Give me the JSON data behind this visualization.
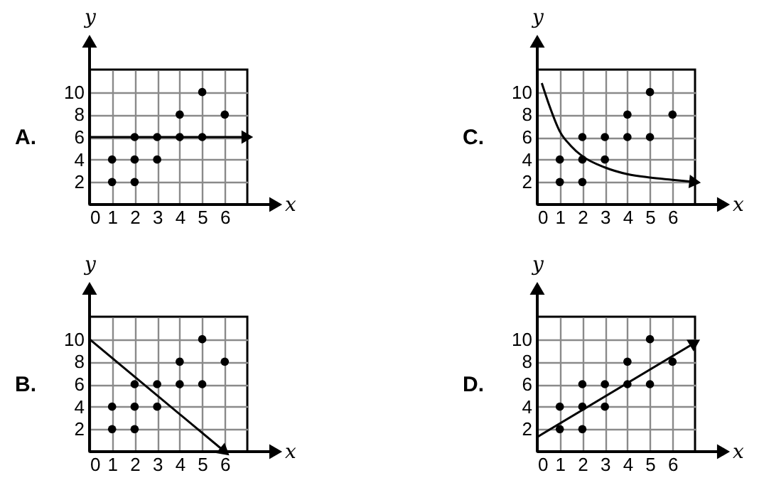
{
  "chart_data": [
    {
      "type": "scatter",
      "title": "A.",
      "xlabel": "x",
      "ylabel": "y",
      "xlim": [
        0,
        7
      ],
      "ylim": [
        0,
        12
      ],
      "xticks": [
        0,
        1,
        2,
        3,
        4,
        5,
        6
      ],
      "yticks": [
        2,
        4,
        6,
        8,
        10
      ],
      "grid": true,
      "series": [
        {
          "color": "#000000",
          "marker": "circle",
          "x": [
            1,
            1,
            2,
            2,
            2,
            3,
            3,
            4,
            4,
            5,
            5,
            6
          ],
          "values": [
            2,
            4,
            2,
            4,
            6,
            4,
            6,
            6,
            8,
            6,
            10,
            8
          ]
        },
        {
          "type": "line",
          "color": "#000000",
          "line_style": "solid",
          "x": [
            0,
            7
          ],
          "values": [
            6,
            6
          ]
        }
      ]
    },
    {
      "type": "scatter",
      "title": "C.",
      "xlabel": "x",
      "ylabel": "y",
      "xlim": [
        0,
        7
      ],
      "ylim": [
        0,
        12
      ],
      "xticks": [
        0,
        1,
        2,
        3,
        4,
        5,
        6
      ],
      "yticks": [
        2,
        4,
        6,
        8,
        10
      ],
      "grid": true,
      "series": [
        {
          "color": "#000000",
          "marker": "circle",
          "x": [
            1,
            1,
            2,
            2,
            2,
            3,
            3,
            4,
            4,
            5,
            5,
            6
          ],
          "values": [
            2,
            4,
            2,
            4,
            6,
            4,
            6,
            6,
            8,
            6,
            10,
            8
          ]
        },
        {
          "type": "line",
          "color": "#000000",
          "line_style": "solid",
          "x": [
            0.2,
            0.5,
            1,
            1.5,
            2,
            3,
            4,
            5,
            6,
            7
          ],
          "values": [
            10.8,
            9,
            6.5,
            5.2,
            4.3,
            3.3,
            2.7,
            2.4,
            2.2,
            2
          ]
        }
      ]
    },
    {
      "type": "scatter",
      "title": "B.",
      "xlabel": "x",
      "ylabel": "y",
      "xlim": [
        0,
        7
      ],
      "ylim": [
        0,
        12
      ],
      "xticks": [
        0,
        1,
        2,
        3,
        4,
        5,
        6
      ],
      "yticks": [
        2,
        4,
        6,
        8,
        10
      ],
      "grid": true,
      "series": [
        {
          "color": "#000000",
          "marker": "circle",
          "x": [
            1,
            1,
            2,
            2,
            2,
            3,
            3,
            4,
            4,
            5,
            5,
            6
          ],
          "values": [
            2,
            4,
            2,
            4,
            6,
            4,
            6,
            6,
            8,
            6,
            10,
            8
          ]
        },
        {
          "type": "line",
          "color": "#000000",
          "line_style": "solid",
          "x": [
            0,
            6
          ],
          "values": [
            10,
            0
          ]
        }
      ]
    },
    {
      "type": "scatter",
      "title": "D.",
      "xlabel": "x",
      "ylabel": "y",
      "xlim": [
        0,
        7
      ],
      "ylim": [
        0,
        12
      ],
      "xticks": [
        0,
        1,
        2,
        3,
        4,
        5,
        6
      ],
      "yticks": [
        2,
        4,
        6,
        8,
        10
      ],
      "grid": true,
      "series": [
        {
          "color": "#000000",
          "marker": "circle",
          "x": [
            1,
            1,
            2,
            2,
            2,
            3,
            3,
            4,
            4,
            5,
            5,
            6
          ],
          "values": [
            2,
            4,
            2,
            4,
            6,
            4,
            6,
            6,
            8,
            6,
            10,
            8
          ]
        },
        {
          "type": "line",
          "color": "#000000",
          "line_style": "solid",
          "x": [
            0,
            7
          ],
          "values": [
            1.3,
            9.7
          ]
        }
      ]
    }
  ]
}
